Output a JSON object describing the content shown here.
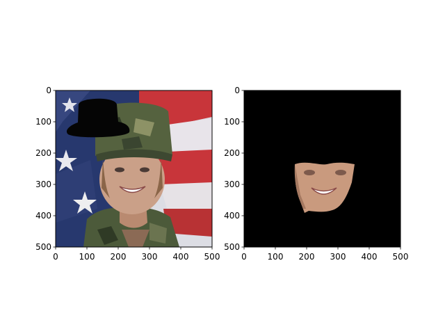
{
  "chart_data": [
    {
      "type": "image",
      "title": "",
      "xlabel": "",
      "ylabel": "",
      "xlim": [
        0,
        500
      ],
      "ylim": [
        500,
        0
      ],
      "xticks": [
        0,
        100,
        200,
        300,
        400,
        500
      ],
      "yticks": [
        0,
        100,
        200,
        300,
        400,
        500
      ],
      "content": "portrait of smiling soldier in camouflage cap in front of American flag, with a black top-hat shape painted over the top-left",
      "colors": {
        "flag_red": "#c8353a",
        "flag_blue": "#27386e",
        "camo": "#4f5d3c",
        "skin": "#c99a7e",
        "mask": "#000000"
      }
    },
    {
      "type": "image",
      "title": "",
      "xlabel": "",
      "ylabel": "",
      "xlim": [
        0,
        500
      ],
      "ylim": [
        500,
        0
      ],
      "xticks": [
        0,
        100,
        200,
        300,
        400,
        500
      ],
      "yticks": [
        0,
        100,
        200,
        300,
        400,
        500
      ],
      "content": "segmented lower face region on black background",
      "colors": {
        "background": "#000000",
        "skin": "#c99a7e"
      }
    }
  ]
}
